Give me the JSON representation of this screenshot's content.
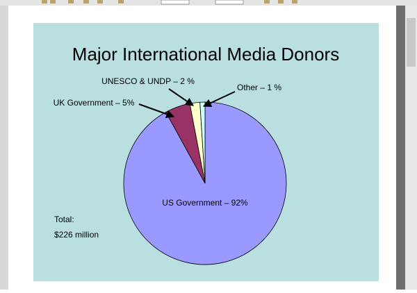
{
  "chart_data": {
    "type": "pie",
    "title": "Major International Media Donors",
    "categories": [
      "US Government – 92%",
      "UK Government – 5%",
      "UNESCO & UNDP – 2 %",
      "Other – 1 %"
    ],
    "values": [
      92,
      5,
      2,
      1
    ],
    "colors": [
      "#9999ff",
      "#993366",
      "#ffffcc",
      "#ccffff"
    ],
    "annotations": [
      "Total:",
      "$226 million"
    ]
  }
}
